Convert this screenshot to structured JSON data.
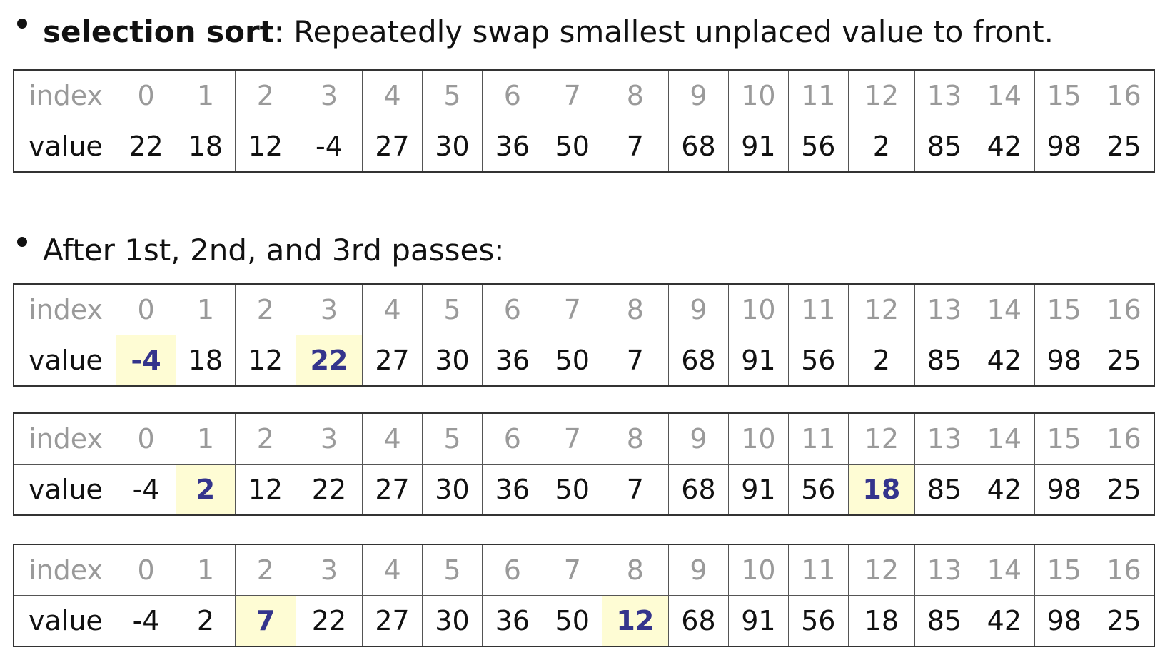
{
  "heading": {
    "term": "selection sort",
    "rest": ": Repeatedly swap smallest unplaced value to front."
  },
  "subheading": "After 1st, 2nd, and 3rd passes:",
  "labels": {
    "index": "index",
    "value": "value"
  },
  "indices": [
    "0",
    "1",
    "2",
    "3",
    "4",
    "5",
    "6",
    "7",
    "8",
    "9",
    "10",
    "11",
    "12",
    "13",
    "14",
    "15",
    "16"
  ],
  "colors": {
    "highlight_bg": "#fefcd4",
    "highlight_text": "#34348c"
  },
  "tables": [
    {
      "name": "initial",
      "values": [
        "22",
        "18",
        "12",
        "-4",
        "27",
        "30",
        "36",
        "50",
        "7",
        "68",
        "91",
        "56",
        "2",
        "85",
        "42",
        "98",
        "25"
      ],
      "highlighted": []
    },
    {
      "name": "pass1",
      "values": [
        "-4",
        "18",
        "12",
        "22",
        "27",
        "30",
        "36",
        "50",
        "7",
        "68",
        "91",
        "56",
        "2",
        "85",
        "42",
        "98",
        "25"
      ],
      "highlighted": [
        0,
        3
      ]
    },
    {
      "name": "pass2",
      "values": [
        "-4",
        "2",
        "12",
        "22",
        "27",
        "30",
        "36",
        "50",
        "7",
        "68",
        "91",
        "56",
        "18",
        "85",
        "42",
        "98",
        "25"
      ],
      "highlighted": [
        1,
        12
      ]
    },
    {
      "name": "pass3",
      "values": [
        "-4",
        "2",
        "7",
        "22",
        "27",
        "30",
        "36",
        "50",
        "12",
        "68",
        "91",
        "56",
        "18",
        "85",
        "42",
        "98",
        "25"
      ],
      "highlighted": [
        2,
        8
      ]
    }
  ]
}
